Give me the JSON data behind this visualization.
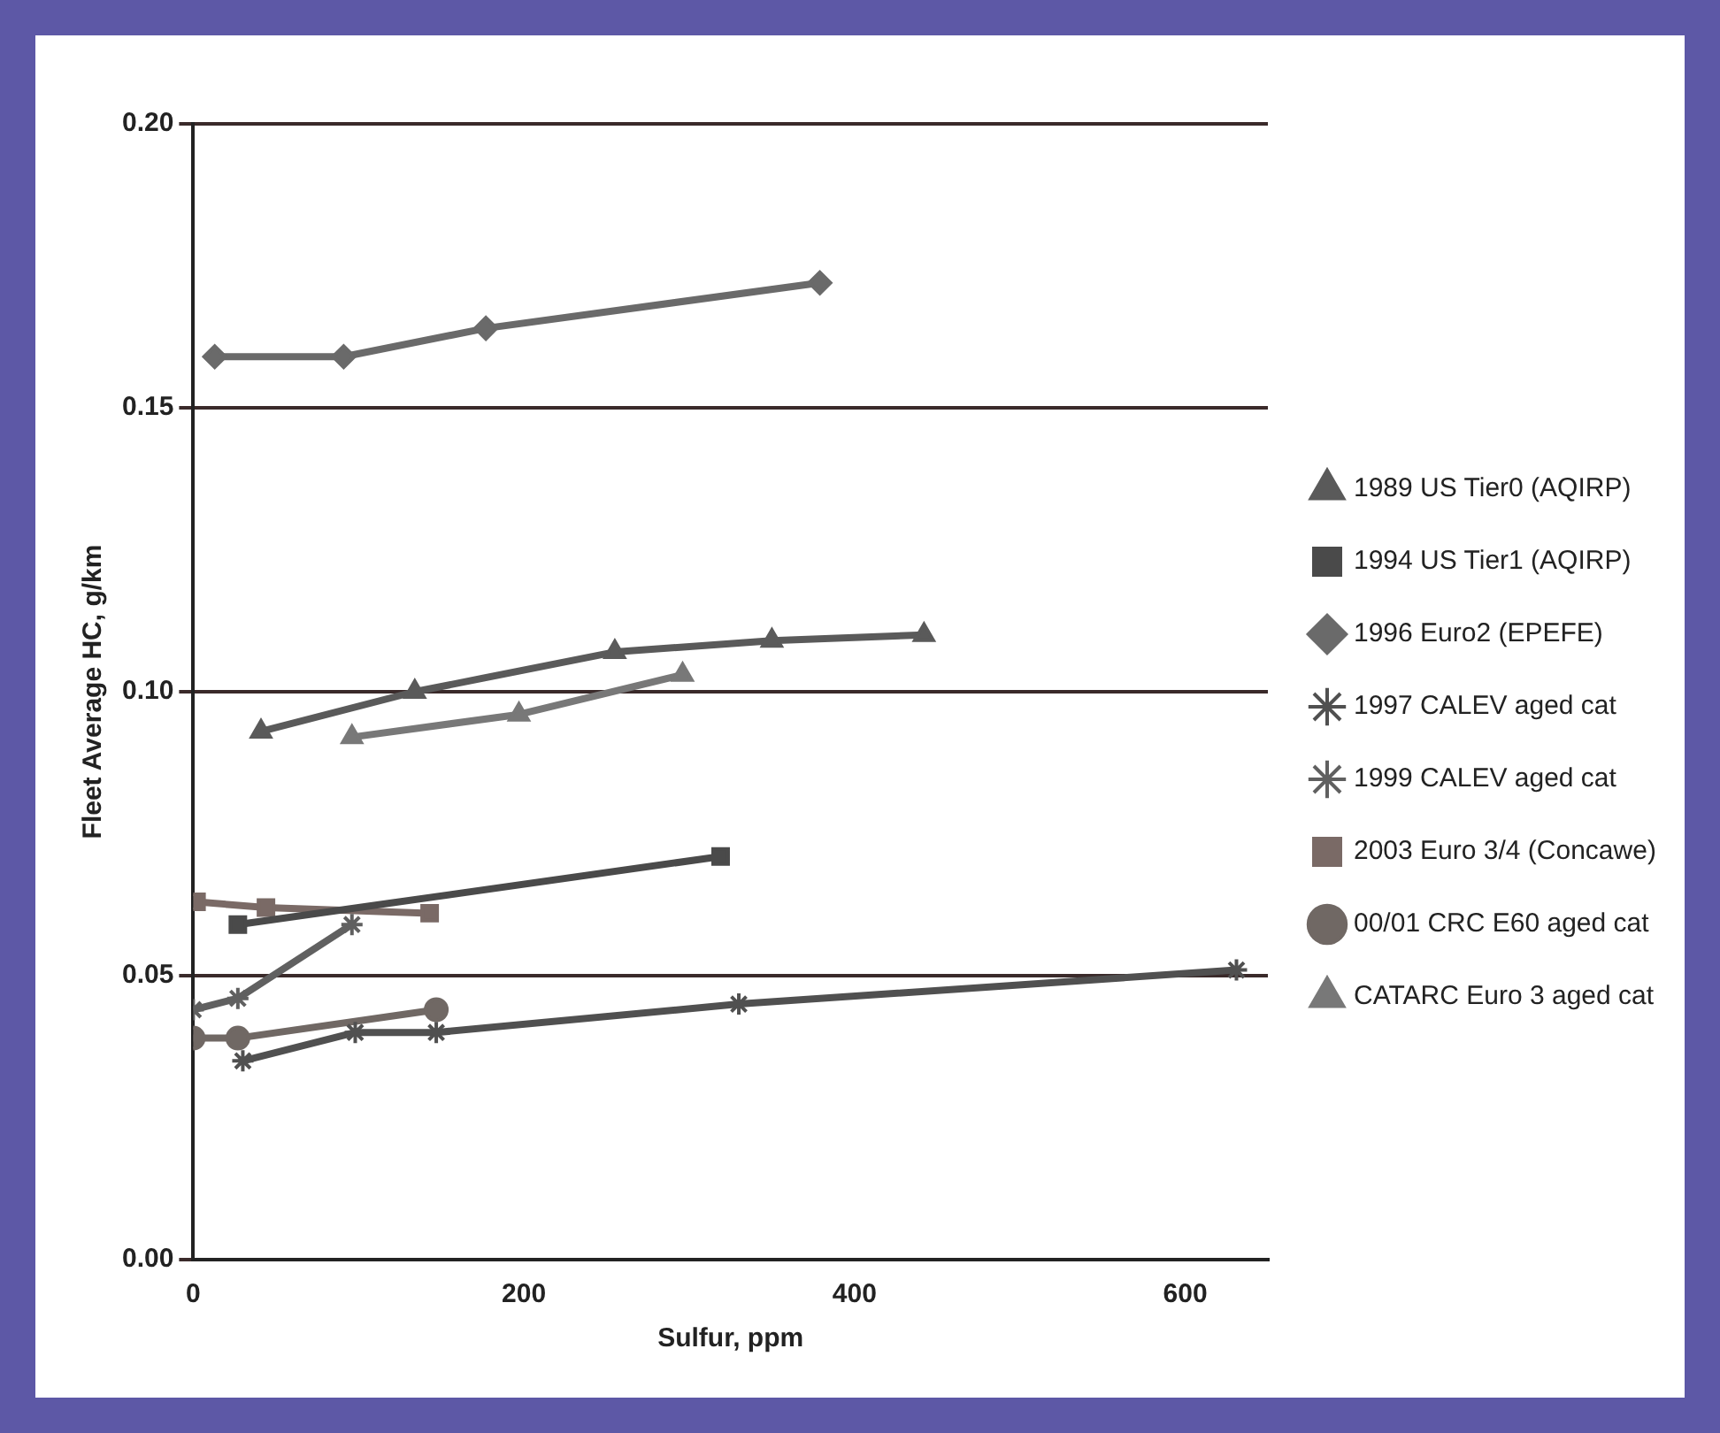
{
  "chart_data": {
    "type": "line",
    "xlabel": "Sulfur, ppm",
    "ylabel": "Fleet Average HC, g/km",
    "xlim": [
      0,
      650
    ],
    "xticks": [
      0,
      200,
      400,
      600
    ],
    "ylim": [
      0,
      0.2
    ],
    "yticks": [
      {
        "value": 0,
        "label": "0.00"
      },
      {
        "value": 0.05,
        "label": "0.05"
      },
      {
        "value": 0.1,
        "label": "0.10"
      },
      {
        "value": 0.15,
        "label": "0.15"
      },
      {
        "value": 0.2,
        "label": "0.20"
      }
    ],
    "grid": "y",
    "legend": "right",
    "line_style": "solid",
    "series": [
      {
        "name": "1989 US Tier0 (AQIRP)",
        "color": "#5a5a5a",
        "marker": "triangle",
        "x": [
          41,
          134,
          255,
          350,
          442
        ],
        "values": [
          0.093,
          0.1,
          0.107,
          0.109,
          0.11
        ]
      },
      {
        "name": "1994 US Tier1 (AQIRP)",
        "color": "#4a4a4a",
        "marker": "square",
        "x": [
          27,
          319
        ],
        "values": [
          0.059,
          0.071
        ]
      },
      {
        "name": "1996 Euro2 (EPEFE)",
        "color": "#6a6a6a",
        "marker": "diamond",
        "x": [
          13,
          91,
          177,
          379
        ],
        "values": [
          0.159,
          0.159,
          0.164,
          0.172
        ]
      },
      {
        "name": "1997 CALEV aged cat",
        "color": "#505050",
        "marker": "cross",
        "x": [
          30,
          98,
          147,
          330,
          631
        ],
        "values": [
          0.035,
          0.04,
          0.04,
          0.045,
          0.051
        ]
      },
      {
        "name": "1999 CALEV aged cat",
        "color": "#606060",
        "marker": "cross",
        "x": [
          0,
          27,
          96
        ],
        "values": [
          0.044,
          0.046,
          0.059
        ]
      },
      {
        "name": "2003 Euro 3/4 (Concawe)",
        "color": "#7a6a66",
        "marker": "square",
        "x": [
          2,
          44,
          143
        ],
        "values": [
          0.063,
          0.062,
          0.061
        ]
      },
      {
        "name": "00/01 CRC E60 aged cat",
        "color": "#706864",
        "marker": "circle",
        "x": [
          0,
          27,
          147
        ],
        "values": [
          0.039,
          0.039,
          0.044
        ]
      },
      {
        "name": "CATARC Euro 3 aged cat",
        "color": "#787878",
        "marker": "triangle",
        "x": [
          96,
          197,
          296
        ],
        "values": [
          0.092,
          0.096,
          0.103
        ]
      }
    ]
  }
}
